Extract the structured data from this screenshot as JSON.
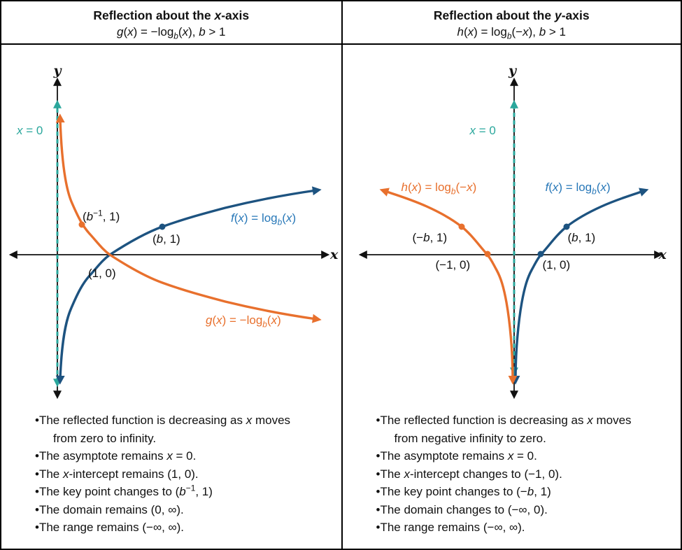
{
  "colors": {
    "blue_curve": "#1d5380",
    "blue_label": "#2878b8",
    "orange": "#e8702d",
    "teal": "#2aa79c",
    "axis": "#111111"
  },
  "panels": [
    {
      "header": {
        "title": "Reflection about the <i>x</i>-axis",
        "formula": "<i>g</i>(<i>x</i>) = −log<sub><i>b</i></sub>(<i>x</i>), <i>b</i> > 1"
      },
      "graph": {
        "y_axis_label": "y",
        "x_axis_label": "x",
        "asymptote_label": "<i>x</i> = 0",
        "f_curve_label": "<i>f</i>(<i>x</i>) = log<sub><i>b</i></sub>(<i>x</i>)",
        "reflected_curve_label": "<i>g</i>(<i>x</i>) = −log<sub><i>b</i></sub>(<i>x</i>)",
        "point_labels": {
          "reflected_key_point": "(<i>b</i><sup>−1</sup>, 1)",
          "key_point": "(<i>b</i>, 1)",
          "x_intercept": "(1, 0)"
        }
      },
      "notes": [
        "The reflected function is decreasing as <i>x</i> moves<br>from zero to infinity.",
        "The asymptote remains <i>x</i> = 0.",
        "The <i>x</i>-intercept remains (1, 0).",
        "The key point changes to (<i>b</i><sup>−1</sup>, 1)",
        "The domain remains (0, ∞).",
        "The range remains (−∞, ∞)."
      ]
    },
    {
      "header": {
        "title": "Reflection about the <i>y</i>-axis",
        "formula": "<i>h</i>(<i>x</i>) = log<sub><i>b</i></sub>(−<i>x</i>), <i>b</i> > 1"
      },
      "graph": {
        "y_axis_label": "y",
        "x_axis_label": "x",
        "asymptote_label": "<i>x</i> = 0",
        "f_curve_label": "<i>f</i>(<i>x</i>) = log<sub><i>b</i></sub>(<i>x</i>)",
        "reflected_curve_label": "<i>h</i>(<i>x</i>) = log<sub><i>b</i></sub>(−<i>x</i>)",
        "point_labels": {
          "reflected_key_point": "(−<i>b</i>, 1)",
          "key_point": "(<i>b</i>, 1)",
          "reflected_x_intercept": "(−1, 0)",
          "x_intercept": "(1, 0)"
        }
      },
      "notes": [
        "The reflected function is decreasing as <i>x</i> moves<br>from  negative infinity to zero.",
        "The asymptote remains <i>x</i> = 0.",
        "The <i>x</i>-intercept changes to (−1, 0).",
        "The key point changes to (−<i>b</i>, 1)",
        "The domain changes to (−∞, 0).",
        "The range remains (−∞, ∞)."
      ]
    }
  ],
  "chart_data": [
    {
      "type": "line",
      "title": "Reflection about the x-axis: g(x) = −log_b(x), b > 1",
      "xlabel": "x",
      "ylabel": "y",
      "asymptote": "x = 0 (vertical, dashed)",
      "legend_position": "on-curve",
      "grid": false,
      "series": [
        {
          "name": "f(x) = log_b(x)",
          "color": "#1d5380",
          "behavior": "increasing on (0, ∞)",
          "key_points": [
            [
              "1",
              "0"
            ],
            [
              "b",
              "1"
            ]
          ]
        },
        {
          "name": "g(x) = −log_b(x)",
          "color": "#e8702d",
          "behavior": "decreasing on (0, ∞)",
          "key_points": [
            [
              "1",
              "0"
            ],
            [
              "b^−1",
              "1"
            ]
          ]
        }
      ]
    },
    {
      "type": "line",
      "title": "Reflection about the y-axis: h(x) = log_b(−x), b > 1",
      "xlabel": "x",
      "ylabel": "y",
      "asymptote": "x = 0 (vertical, dashed)",
      "legend_position": "on-curve",
      "grid": false,
      "series": [
        {
          "name": "f(x) = log_b(x)",
          "color": "#1d5380",
          "domain": "(0, ∞)",
          "key_points": [
            [
              "1",
              "0"
            ],
            [
              "b",
              "1"
            ]
          ]
        },
        {
          "name": "h(x) = log_b(−x)",
          "color": "#e8702d",
          "domain": "(−∞, 0)",
          "key_points": [
            [
              "−1",
              "0"
            ],
            [
              "−b",
              "1"
            ]
          ]
        }
      ]
    }
  ]
}
